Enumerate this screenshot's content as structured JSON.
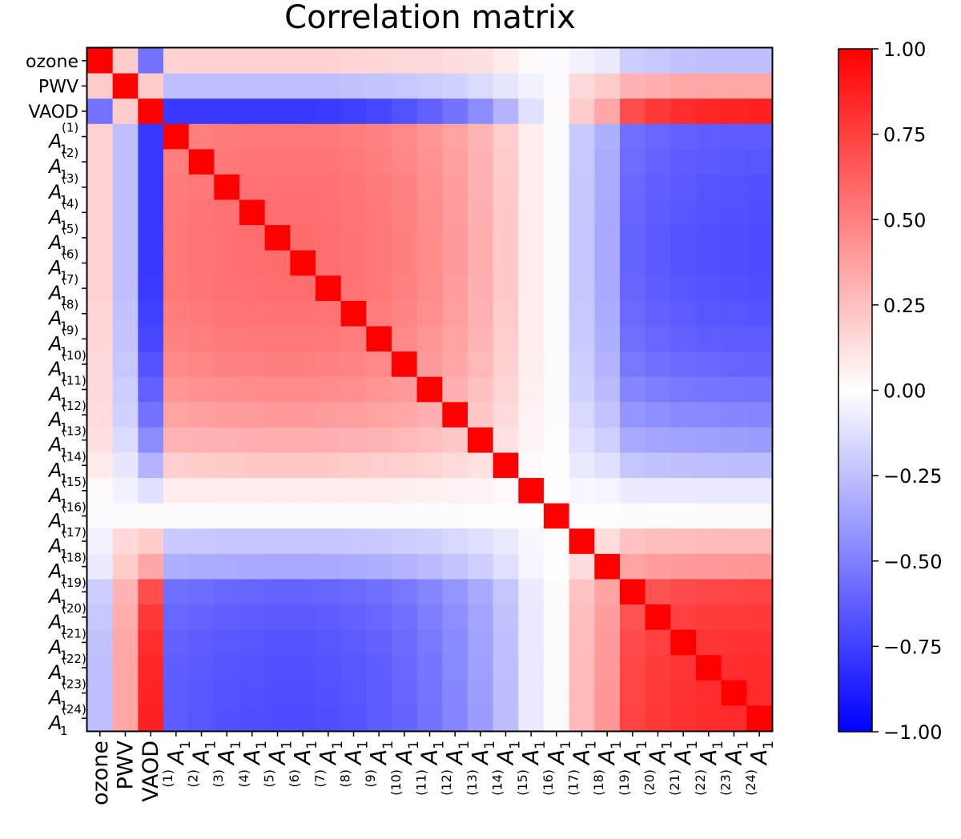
{
  "chart_data": {
    "type": "heatmap",
    "title": "Correlation matrix",
    "labels": [
      "ozone",
      "PWV",
      "VAOD",
      "A_1^(1)",
      "A_1^(2)",
      "A_1^(3)",
      "A_1^(4)",
      "A_1^(5)",
      "A_1^(6)",
      "A_1^(7)",
      "A_1^(8)",
      "A_1^(9)",
      "A_1^(10)",
      "A_1^(11)",
      "A_1^(12)",
      "A_1^(13)",
      "A_1^(14)",
      "A_1^(15)",
      "A_1^(16)",
      "A_1^(17)",
      "A_1^(18)",
      "A_1^(19)",
      "A_1^(20)",
      "A_1^(21)",
      "A_1^(22)",
      "A_1^(23)",
      "A_1^(24)"
    ],
    "label_parts": [
      {
        "base": "ozone",
        "sub": "",
        "sup": ""
      },
      {
        "base": "PWV",
        "sub": "",
        "sup": ""
      },
      {
        "base": "VAOD",
        "sub": "",
        "sup": ""
      },
      {
        "base": "A",
        "sub": "1",
        "sup": "(1)"
      },
      {
        "base": "A",
        "sub": "1",
        "sup": "(2)"
      },
      {
        "base": "A",
        "sub": "1",
        "sup": "(3)"
      },
      {
        "base": "A",
        "sub": "1",
        "sup": "(4)"
      },
      {
        "base": "A",
        "sub": "1",
        "sup": "(5)"
      },
      {
        "base": "A",
        "sub": "1",
        "sup": "(6)"
      },
      {
        "base": "A",
        "sub": "1",
        "sup": "(7)"
      },
      {
        "base": "A",
        "sub": "1",
        "sup": "(8)"
      },
      {
        "base": "A",
        "sub": "1",
        "sup": "(9)"
      },
      {
        "base": "A",
        "sub": "1",
        "sup": "(10)"
      },
      {
        "base": "A",
        "sub": "1",
        "sup": "(11)"
      },
      {
        "base": "A",
        "sub": "1",
        "sup": "(12)"
      },
      {
        "base": "A",
        "sub": "1",
        "sup": "(13)"
      },
      {
        "base": "A",
        "sub": "1",
        "sup": "(14)"
      },
      {
        "base": "A",
        "sub": "1",
        "sup": "(15)"
      },
      {
        "base": "A",
        "sub": "1",
        "sup": "(16)"
      },
      {
        "base": "A",
        "sub": "1",
        "sup": "(17)"
      },
      {
        "base": "A",
        "sub": "1",
        "sup": "(18)"
      },
      {
        "base": "A",
        "sub": "1",
        "sup": "(19)"
      },
      {
        "base": "A",
        "sub": "1",
        "sup": "(20)"
      },
      {
        "base": "A",
        "sub": "1",
        "sup": "(21)"
      },
      {
        "base": "A",
        "sub": "1",
        "sup": "(22)"
      },
      {
        "base": "A",
        "sub": "1",
        "sup": "(23)"
      },
      {
        "base": "A",
        "sub": "1",
        "sup": "(24)"
      }
    ],
    "row_scalars": {
      "ozone_vs_A": [
        0.18,
        0.18,
        0.18,
        0.18,
        0.18,
        0.18,
        0.18,
        0.17,
        0.16,
        0.15,
        0.15,
        0.14,
        0.12,
        0.08,
        0.02,
        -0.02,
        -0.05,
        -0.08,
        -0.2,
        -0.22,
        -0.24,
        -0.25,
        -0.25,
        -0.25
      ],
      "pwv_vs_A": [
        -0.25,
        -0.25,
        -0.25,
        -0.25,
        -0.25,
        -0.25,
        -0.25,
        -0.24,
        -0.23,
        -0.22,
        -0.2,
        -0.18,
        -0.14,
        -0.1,
        -0.05,
        -0.02,
        0.15,
        0.2,
        0.3,
        0.32,
        0.34,
        0.35,
        0.35,
        0.35
      ],
      "vaod_vs_A": [
        -0.78,
        -0.78,
        -0.78,
        -0.78,
        -0.78,
        -0.78,
        -0.77,
        -0.75,
        -0.72,
        -0.68,
        -0.62,
        -0.55,
        -0.45,
        -0.3,
        -0.12,
        0.02,
        0.2,
        0.35,
        0.7,
        0.78,
        0.82,
        0.85,
        0.86,
        0.87
      ],
      "ozone_pwv": 0.2,
      "ozone_vaod": -0.55,
      "pwv_vaod": 0.2,
      "a_loadings": [
        0.7,
        0.72,
        0.74,
        0.75,
        0.76,
        0.76,
        0.75,
        0.73,
        0.7,
        0.66,
        0.6,
        0.52,
        0.42,
        0.28,
        0.1,
        -0.02,
        -0.3,
        -0.45,
        -0.8,
        -0.85,
        -0.88,
        -0.9,
        -0.91,
        -0.92
      ]
    },
    "colorbar": {
      "cmap": "bwr",
      "vmin": -1.0,
      "vmax": 1.0,
      "ticks": [
        1.0,
        0.75,
        0.5,
        0.25,
        0.0,
        -0.25,
        -0.5,
        -0.75,
        -1.0
      ],
      "tick_labels": [
        "1.00",
        "0.75",
        "0.50",
        "0.25",
        "0.00",
        "−0.25",
        "−0.50",
        "−0.75",
        "−1.00"
      ]
    }
  }
}
